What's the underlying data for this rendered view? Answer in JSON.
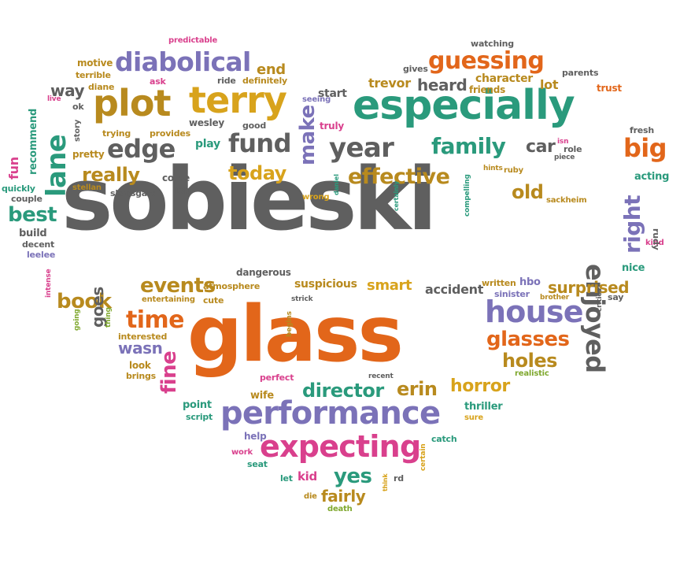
{
  "colors": {
    "gray": "#5f5f5f",
    "orange": "#e2661a",
    "teal": "#2a9a7c",
    "purple": "#7b72b8",
    "pink": "#d9408d",
    "olive": "#b88a1e",
    "green": "#7fa82e",
    "yellow": "#d8a31c"
  },
  "words": [
    {
      "text": "sobieski",
      "color": "gray"
    },
    {
      "text": "glass",
      "color": "orange"
    },
    {
      "text": "especially",
      "color": "teal"
    },
    {
      "text": "performance",
      "color": "purple"
    },
    {
      "text": "expecting",
      "color": "pink"
    },
    {
      "text": "plot",
      "color": "olive"
    },
    {
      "text": "terry",
      "color": "yellow"
    },
    {
      "text": "diabolical",
      "color": "purple"
    },
    {
      "text": "guessing",
      "color": "orange"
    },
    {
      "text": "house",
      "color": "purple"
    },
    {
      "text": "year",
      "color": "gray"
    },
    {
      "text": "family",
      "color": "teal"
    },
    {
      "text": "edge",
      "color": "gray"
    },
    {
      "text": "fund",
      "color": "gray"
    },
    {
      "text": "effective",
      "color": "olive"
    },
    {
      "text": "time",
      "color": "orange"
    },
    {
      "text": "lane",
      "color": "teal"
    },
    {
      "text": "enjoyed",
      "color": "gray"
    },
    {
      "text": "right",
      "color": "purple"
    },
    {
      "text": "big",
      "color": "orange"
    },
    {
      "text": "make",
      "color": "purple"
    },
    {
      "text": "glasses",
      "color": "orange"
    },
    {
      "text": "holes",
      "color": "olive"
    },
    {
      "text": "director",
      "color": "teal"
    },
    {
      "text": "erin",
      "color": "olive"
    },
    {
      "text": "horror",
      "color": "yellow"
    },
    {
      "text": "events",
      "color": "olive"
    },
    {
      "text": "book",
      "color": "olive"
    },
    {
      "text": "fine",
      "color": "pink"
    },
    {
      "text": "yes",
      "color": "teal"
    },
    {
      "text": "fairly",
      "color": "olive"
    },
    {
      "text": "surprised",
      "color": "olive"
    },
    {
      "text": "really",
      "color": "olive"
    },
    {
      "text": "today",
      "color": "yellow"
    },
    {
      "text": "old",
      "color": "olive"
    },
    {
      "text": "best",
      "color": "teal"
    },
    {
      "text": "car",
      "color": "gray"
    },
    {
      "text": "goes",
      "color": "gray"
    },
    {
      "text": "wasn",
      "color": "purple"
    },
    {
      "text": "smart",
      "color": "yellow"
    },
    {
      "text": "suspicious",
      "color": "olive"
    },
    {
      "text": "accident",
      "color": "gray"
    },
    {
      "text": "end",
      "color": "olive"
    },
    {
      "text": "heard",
      "color": "gray"
    },
    {
      "text": "way",
      "color": "gray"
    },
    {
      "text": "trevor",
      "color": "olive"
    },
    {
      "text": "character",
      "color": "olive"
    },
    {
      "text": "lot",
      "color": "olive"
    },
    {
      "text": "start",
      "color": "gray"
    },
    {
      "text": "motive",
      "color": "olive"
    },
    {
      "text": "terrible",
      "color": "olive"
    },
    {
      "text": "diane",
      "color": "olive"
    },
    {
      "text": "predictable",
      "color": "pink"
    },
    {
      "text": "watching",
      "color": "gray"
    },
    {
      "text": "gives",
      "color": "gray"
    },
    {
      "text": "parents",
      "color": "gray"
    },
    {
      "text": "trust",
      "color": "orange"
    },
    {
      "text": "friends",
      "color": "olive"
    },
    {
      "text": "ask",
      "color": "pink"
    },
    {
      "text": "ride",
      "color": "gray"
    },
    {
      "text": "definitely",
      "color": "olive"
    },
    {
      "text": "seeing",
      "color": "purple"
    },
    {
      "text": "truly",
      "color": "pink"
    },
    {
      "text": "good",
      "color": "gray"
    },
    {
      "text": "wesley",
      "color": "gray"
    },
    {
      "text": "provides",
      "color": "olive"
    },
    {
      "text": "trying",
      "color": "olive"
    },
    {
      "text": "pretty",
      "color": "olive"
    },
    {
      "text": "play",
      "color": "teal"
    },
    {
      "text": "ok",
      "color": "gray"
    },
    {
      "text": "live",
      "color": "pink"
    },
    {
      "text": "story",
      "color": "gray"
    },
    {
      "text": "recommend",
      "color": "teal"
    },
    {
      "text": "fun",
      "color": "pink"
    },
    {
      "text": "quickly",
      "color": "teal"
    },
    {
      "text": "stellan",
      "color": "olive"
    },
    {
      "text": "skarsgard",
      "color": "gray"
    },
    {
      "text": "come",
      "color": "gray"
    },
    {
      "text": "job",
      "color": "gray"
    },
    {
      "text": "couple",
      "color": "gray"
    },
    {
      "text": "build",
      "color": "gray"
    },
    {
      "text": "decent",
      "color": "gray"
    },
    {
      "text": "leelee",
      "color": "purple"
    },
    {
      "text": "intense",
      "color": "pink"
    },
    {
      "text": "going",
      "color": "green"
    },
    {
      "text": "thing",
      "color": "green"
    },
    {
      "text": "dangerous",
      "color": "gray"
    },
    {
      "text": "atmosphere",
      "color": "olive"
    },
    {
      "text": "entertaining",
      "color": "olive"
    },
    {
      "text": "cute",
      "color": "olive"
    },
    {
      "text": "strick",
      "color": "gray"
    },
    {
      "text": "begins",
      "color": "olive"
    },
    {
      "text": "interested",
      "color": "olive"
    },
    {
      "text": "look",
      "color": "olive"
    },
    {
      "text": "brings",
      "color": "olive"
    },
    {
      "text": "perfect",
      "color": "pink"
    },
    {
      "text": "recent",
      "color": "gray"
    },
    {
      "text": "realistic",
      "color": "green"
    },
    {
      "text": "wife",
      "color": "olive"
    },
    {
      "text": "point",
      "color": "teal"
    },
    {
      "text": "script",
      "color": "teal"
    },
    {
      "text": "help",
      "color": "purple"
    },
    {
      "text": "work",
      "color": "pink"
    },
    {
      "text": "seat",
      "color": "teal"
    },
    {
      "text": "let",
      "color": "teal"
    },
    {
      "text": "kid",
      "color": "pink"
    },
    {
      "text": "die",
      "color": "olive"
    },
    {
      "text": "death",
      "color": "green"
    },
    {
      "text": "think",
      "color": "yellow"
    },
    {
      "text": "rd",
      "color": "gray"
    },
    {
      "text": "certain",
      "color": "yellow"
    },
    {
      "text": "catch",
      "color": "teal"
    },
    {
      "text": "thriller",
      "color": "teal"
    },
    {
      "text": "sure",
      "color": "yellow"
    },
    {
      "text": "written",
      "color": "olive"
    },
    {
      "text": "hbo",
      "color": "purple"
    },
    {
      "text": "sinister",
      "color": "purple"
    },
    {
      "text": "brother",
      "color": "olive"
    },
    {
      "text": "critics",
      "color": "gray"
    },
    {
      "text": "say",
      "color": "gray"
    },
    {
      "text": "nice",
      "color": "teal"
    },
    {
      "text": "kind",
      "color": "pink"
    },
    {
      "text": "rudy",
      "color": "gray"
    },
    {
      "text": "acting",
      "color": "teal"
    },
    {
      "text": "fresh",
      "color": "gray"
    },
    {
      "text": "isn",
      "color": "pink"
    },
    {
      "text": "role",
      "color": "gray"
    },
    {
      "text": "piece",
      "color": "gray"
    },
    {
      "text": "hints",
      "color": "olive"
    },
    {
      "text": "ruby",
      "color": "olive"
    },
    {
      "text": "sackheim",
      "color": "olive"
    },
    {
      "text": "compelling",
      "color": "teal"
    },
    {
      "text": "certainly",
      "color": "teal"
    },
    {
      "text": "daniel",
      "color": "teal"
    },
    {
      "text": "wrong",
      "color": "yellow"
    }
  ]
}
